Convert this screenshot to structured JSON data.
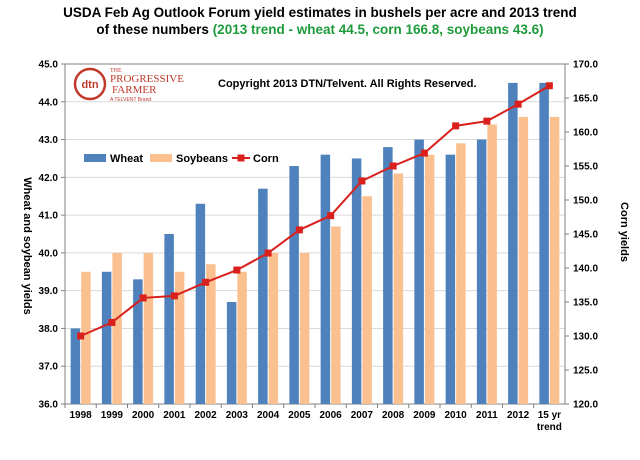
{
  "title": {
    "line1": "USDA Feb Ag Outlook Forum yield estimates in bushels per acre and 2013 trend",
    "line2_prefix": "of these numbers ",
    "line2_green": "(2013 trend - wheat 44.5, corn 166.8, soybeans 43.6)"
  },
  "copyright": "Copyright 2013 DTN/Telvent. All Rights Reserved.",
  "logo": {
    "badge": "dtn",
    "line1": "THE",
    "line2": "PROGRESSIVE",
    "line3": "FARMER",
    "line4": "A TELVENT Brand"
  },
  "colors": {
    "wheat": "#4f81bd",
    "soybeans": "#fac090",
    "corn": "#d9201c",
    "title_green": "#1f9a3a",
    "plot_bg": "#ffffff",
    "grid": "#d9d9d9"
  },
  "chart_data": {
    "type": "bar",
    "categories": [
      "1998",
      "1999",
      "2000",
      "2001",
      "2002",
      "2003",
      "2004",
      "2005",
      "2006",
      "2007",
      "2008",
      "2009",
      "2010",
      "2011",
      "2012",
      "15 yr trend"
    ],
    "series": [
      {
        "name": "Wheat",
        "type": "bar",
        "axis": "left",
        "values": [
          38.0,
          39.5,
          39.3,
          40.5,
          41.3,
          38.7,
          41.7,
          42.3,
          42.6,
          42.5,
          42.8,
          43.0,
          42.6,
          43.0,
          44.5,
          44.5
        ]
      },
      {
        "name": "Soybeans",
        "type": "bar",
        "axis": "left",
        "values": [
          39.5,
          40.0,
          40.0,
          39.5,
          39.7,
          39.5,
          40.0,
          40.0,
          40.7,
          41.5,
          42.1,
          42.6,
          42.9,
          43.4,
          43.6,
          43.6
        ]
      },
      {
        "name": "Corn",
        "type": "line",
        "axis": "right",
        "values": [
          130.0,
          132.0,
          135.6,
          135.9,
          137.9,
          139.7,
          142.2,
          145.6,
          147.7,
          152.8,
          155.0,
          156.9,
          160.9,
          161.6,
          164.1,
          166.8
        ]
      }
    ],
    "ylabel": "Wheat and soybean yields",
    "y2label": "Corn yields",
    "ylim": [
      36.0,
      45.0
    ],
    "y2lim": [
      120.0,
      170.0
    ],
    "yticks": [
      "36.0",
      "37.0",
      "38.0",
      "39.0",
      "40.0",
      "41.0",
      "42.0",
      "43.0",
      "44.0",
      "45.0"
    ],
    "y2ticks": [
      "120.0",
      "125.0",
      "130.0",
      "135.0",
      "140.0",
      "145.0",
      "150.0",
      "155.0",
      "160.0",
      "165.0",
      "170.0"
    ],
    "legend_position": "upper-left",
    "grid": true
  }
}
